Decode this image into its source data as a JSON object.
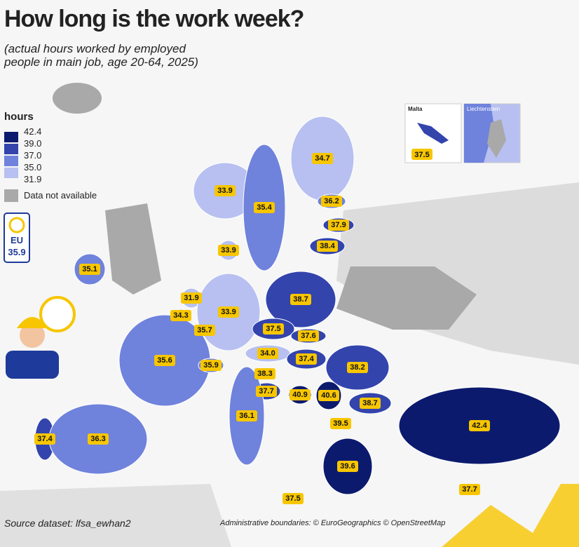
{
  "title": "How long is the work week?",
  "subtitle": "(actual hours worked by employed people in main job, age 20-64, 2025)",
  "legend": {
    "title": "hours",
    "breaks": [
      "42.4",
      "39.0",
      "37.0",
      "35.0",
      "31.9"
    ],
    "not_available": "Data not available"
  },
  "eu": {
    "label": "EU",
    "value": "35.9"
  },
  "insets": {
    "malta": {
      "title": "Malta",
      "value": "37.5"
    },
    "liechtenstein": {
      "title": "Liechtenstein"
    }
  },
  "regions": [
    {
      "value": "34.7",
      "color": "#b7c0f0"
    },
    {
      "value": "33.9",
      "color": "#b7c0f0"
    },
    {
      "value": "35.4",
      "color": "#6f82dc"
    },
    {
      "value": "36.2",
      "color": "#6f82dc"
    },
    {
      "value": "37.9",
      "color": "#3344ad"
    },
    {
      "value": "38.4",
      "color": "#3344ad"
    },
    {
      "value": "33.9",
      "color": "#b7c0f0"
    },
    {
      "value": "35.1",
      "color": "#6f82dc"
    },
    {
      "value": "38.7",
      "color": "#3344ad"
    },
    {
      "value": "31.9",
      "color": "#b7c0f0"
    },
    {
      "value": "34.3",
      "color": "#b7c0f0"
    },
    {
      "value": "33.9",
      "color": "#b7c0f0"
    },
    {
      "value": "35.7",
      "color": "#6f82dc"
    },
    {
      "value": "37.5",
      "color": "#3344ad"
    },
    {
      "value": "37.6",
      "color": "#3344ad"
    },
    {
      "value": "35.6",
      "color": "#6f82dc"
    },
    {
      "value": "35.9",
      "color": "#6f82dc"
    },
    {
      "value": "34.0",
      "color": "#b7c0f0"
    },
    {
      "value": "37.4",
      "color": "#3344ad"
    },
    {
      "value": "38.2",
      "color": "#3344ad"
    },
    {
      "value": "38.3",
      "color": "#3344ad"
    },
    {
      "value": "37.7",
      "color": "#3344ad"
    },
    {
      "value": "40.9",
      "color": "#0c1a6e"
    },
    {
      "value": "40.6",
      "color": "#0c1a6e"
    },
    {
      "value": "38.7",
      "color": "#3344ad"
    },
    {
      "value": "36.1",
      "color": "#6f82dc"
    },
    {
      "value": "39.5",
      "color": "#0c1a6e"
    },
    {
      "value": "37.4",
      "color": "#3344ad"
    },
    {
      "value": "36.3",
      "color": "#6f82dc"
    },
    {
      "value": "42.4",
      "color": "#0c1a6e"
    },
    {
      "value": "39.6",
      "color": "#0c1a6e"
    },
    {
      "value": "37.5",
      "color": "#3344ad"
    },
    {
      "value": "37.7",
      "color": "#3344ad"
    }
  ],
  "source": "Source dataset: lfsa_ewhan2",
  "attribution": "Administrative boundaries: © EuroGeographics © OpenStreetMap"
}
